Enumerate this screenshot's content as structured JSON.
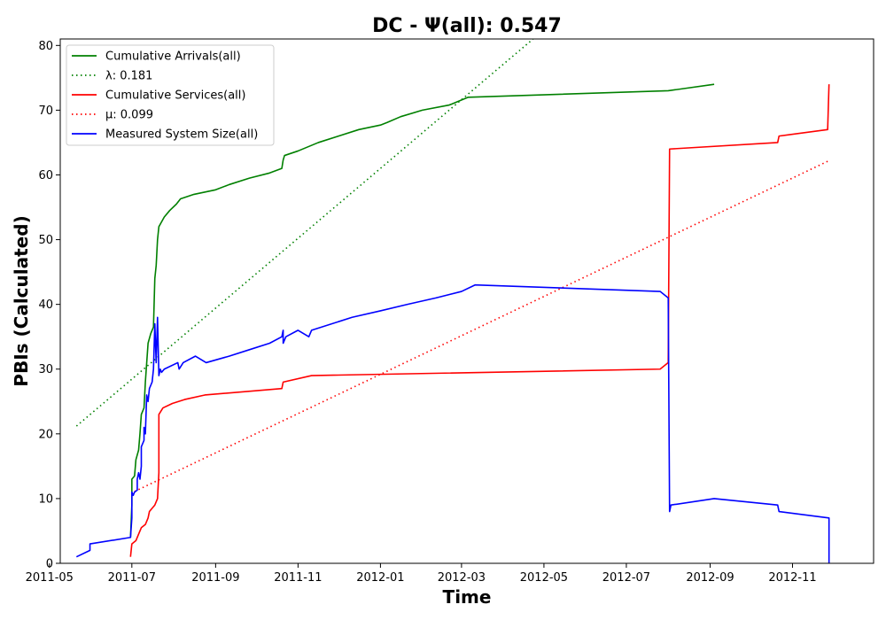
{
  "chart_data": {
    "type": "line",
    "title": "DC -  Ψ(all): 0.547",
    "xlabel": "Time",
    "ylabel": "PBIs (Calculated)",
    "x_type": "date",
    "xlim": [
      "2011-05-09",
      "2012-12-31"
    ],
    "ylim": [
      0,
      81
    ],
    "x_ticks": [
      "2011-05-01",
      "2011-07-01",
      "2011-09-01",
      "2011-11-01",
      "2012-01-01",
      "2012-03-01",
      "2012-05-01",
      "2012-07-01",
      "2012-09-01",
      "2012-11-01"
    ],
    "x_tick_labels": [
      "2011-05",
      "2011-07",
      "2011-09",
      "2011-11",
      "2012-01",
      "2012-03",
      "2012-05",
      "2012-07",
      "2012-09",
      "2012-11"
    ],
    "y_ticks": [
      0,
      10,
      20,
      30,
      40,
      50,
      60,
      70,
      80
    ],
    "grid": false,
    "legend_position": "top-left",
    "series": [
      {
        "name": "Cumulative Arrivals(all)",
        "color": "#008000",
        "style": "solid",
        "points": [
          [
            "2011-06-30",
            4
          ],
          [
            "2011-07-01",
            9
          ],
          [
            "2011-07-01",
            13
          ],
          [
            "2011-07-03",
            13.5
          ],
          [
            "2011-07-04",
            16
          ],
          [
            "2011-07-06",
            17.5
          ],
          [
            "2011-07-07",
            20
          ],
          [
            "2011-07-08",
            23
          ],
          [
            "2011-07-10",
            24
          ],
          [
            "2011-07-11",
            28
          ],
          [
            "2011-07-12",
            31
          ],
          [
            "2011-07-13",
            34
          ],
          [
            "2011-07-15",
            35.5
          ],
          [
            "2011-07-17",
            36.5
          ],
          [
            "2011-07-18",
            44
          ],
          [
            "2011-07-19",
            46
          ],
          [
            "2011-07-20",
            50
          ],
          [
            "2011-07-21",
            52
          ],
          [
            "2011-07-25",
            53.5
          ],
          [
            "2011-07-29",
            54.5
          ],
          [
            "2011-08-03",
            55.5
          ],
          [
            "2011-08-06",
            56.3
          ],
          [
            "2011-08-16",
            57
          ],
          [
            "2011-09-01",
            57.7
          ],
          [
            "2011-09-11",
            58.5
          ],
          [
            "2011-09-26",
            59.5
          ],
          [
            "2011-10-11",
            60.3
          ],
          [
            "2011-10-20",
            61
          ],
          [
            "2011-10-21",
            62.3
          ],
          [
            "2011-10-22",
            63
          ],
          [
            "2011-11-01",
            63.7
          ],
          [
            "2011-11-16",
            65
          ],
          [
            "2011-12-01",
            66
          ],
          [
            "2011-12-16",
            67
          ],
          [
            "2012-01-01",
            67.7
          ],
          [
            "2012-01-06",
            68.1
          ],
          [
            "2012-01-16",
            69
          ],
          [
            "2012-02-01",
            70
          ],
          [
            "2012-02-21",
            70.8
          ],
          [
            "2012-03-06",
            72
          ],
          [
            "2012-08-01",
            73
          ],
          [
            "2012-09-04",
            74
          ]
        ]
      },
      {
        "name": "λ: 0.181",
        "color": "#008000",
        "style": "dotted",
        "points": [
          [
            "2011-05-21",
            21.2
          ],
          [
            "2012-04-23",
            81
          ]
        ]
      },
      {
        "name": "Cumulative Services(all)",
        "color": "#ff0000",
        "style": "solid",
        "points": [
          [
            "2011-06-30",
            1
          ],
          [
            "2011-07-01",
            3
          ],
          [
            "2011-07-04",
            3.5
          ],
          [
            "2011-07-06",
            4.5
          ],
          [
            "2011-07-08",
            5.5
          ],
          [
            "2011-07-11",
            6
          ],
          [
            "2011-07-13",
            7
          ],
          [
            "2011-07-14",
            8
          ],
          [
            "2011-07-16",
            8.5
          ],
          [
            "2011-07-18",
            9
          ],
          [
            "2011-07-20",
            10
          ],
          [
            "2011-07-21",
            14
          ],
          [
            "2011-07-21",
            23
          ],
          [
            "2011-07-24",
            24
          ],
          [
            "2011-07-31",
            24.7
          ],
          [
            "2011-08-09",
            25.3
          ],
          [
            "2011-08-24",
            26
          ],
          [
            "2011-10-20",
            27
          ],
          [
            "2011-10-21",
            28
          ],
          [
            "2011-11-11",
            29
          ],
          [
            "2012-07-26",
            30
          ],
          [
            "2012-08-01",
            31
          ],
          [
            "2012-08-02",
            64
          ],
          [
            "2012-10-21",
            65
          ],
          [
            "2012-10-22",
            66
          ],
          [
            "2012-11-27",
            67
          ],
          [
            "2012-11-28",
            74
          ]
        ]
      },
      {
        "name": "μ: 0.099",
        "color": "#ff0000",
        "style": "dotted",
        "points": [
          [
            "2011-07-03",
            11.1
          ],
          [
            "2012-11-28",
            62.2
          ]
        ]
      },
      {
        "name": "Measured System Size(all)",
        "color": "#0000ff",
        "style": "solid",
        "points": [
          [
            "2011-05-21",
            1
          ],
          [
            "2011-05-31",
            2
          ],
          [
            "2011-05-31",
            3
          ],
          [
            "2011-06-30",
            4
          ],
          [
            "2011-07-01",
            7
          ],
          [
            "2011-07-01",
            11
          ],
          [
            "2011-07-02",
            10.5
          ],
          [
            "2011-07-03",
            11
          ],
          [
            "2011-07-05",
            11.3
          ],
          [
            "2011-07-05",
            13
          ],
          [
            "2011-07-06",
            14
          ],
          [
            "2011-07-07",
            13
          ],
          [
            "2011-07-08",
            15
          ],
          [
            "2011-07-08",
            18
          ],
          [
            "2011-07-10",
            19
          ],
          [
            "2011-07-10",
            21
          ],
          [
            "2011-07-11",
            20
          ],
          [
            "2011-07-12",
            26
          ],
          [
            "2011-07-13",
            25
          ],
          [
            "2011-07-14",
            27
          ],
          [
            "2011-07-16",
            28
          ],
          [
            "2011-07-17",
            30
          ],
          [
            "2011-07-18",
            37
          ],
          [
            "2011-07-19",
            31
          ],
          [
            "2011-07-20",
            38
          ],
          [
            "2011-07-21",
            29
          ],
          [
            "2011-07-22",
            30
          ],
          [
            "2011-07-23",
            29.5
          ],
          [
            "2011-07-25",
            30
          ],
          [
            "2011-08-04",
            31
          ],
          [
            "2011-08-05",
            30
          ],
          [
            "2011-08-08",
            31
          ],
          [
            "2011-08-17",
            32
          ],
          [
            "2011-08-25",
            31
          ],
          [
            "2011-09-11",
            32
          ],
          [
            "2011-09-26",
            33
          ],
          [
            "2011-10-11",
            34
          ],
          [
            "2011-10-20",
            35
          ],
          [
            "2011-10-21",
            36
          ],
          [
            "2011-10-21",
            34
          ],
          [
            "2011-10-23",
            35
          ],
          [
            "2011-11-01",
            36
          ],
          [
            "2011-11-09",
            35
          ],
          [
            "2011-11-11",
            36
          ],
          [
            "2011-12-11",
            38
          ],
          [
            "2012-01-01",
            39
          ],
          [
            "2012-01-21",
            40
          ],
          [
            "2012-02-11",
            41
          ],
          [
            "2012-03-01",
            42
          ],
          [
            "2012-03-11",
            43
          ],
          [
            "2012-07-26",
            42
          ],
          [
            "2012-08-01",
            41
          ],
          [
            "2012-08-02",
            8
          ],
          [
            "2012-08-03",
            9
          ],
          [
            "2012-09-04",
            10
          ],
          [
            "2012-10-21",
            9
          ],
          [
            "2012-10-22",
            8
          ],
          [
            "2012-11-28",
            7
          ],
          [
            "2012-11-28",
            0
          ]
        ]
      }
    ]
  }
}
